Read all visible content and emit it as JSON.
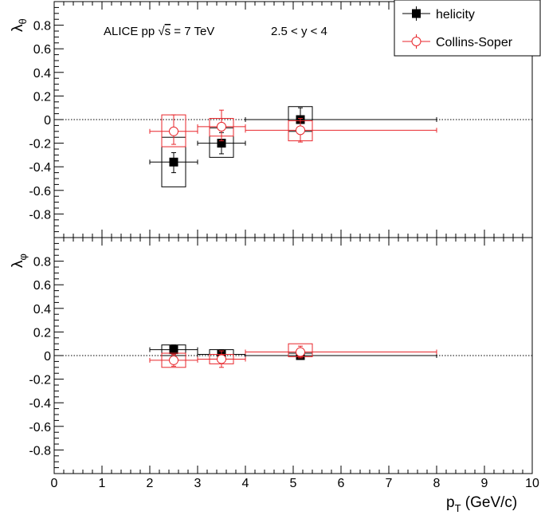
{
  "chart_data": {
    "type": "scatter",
    "annotation": {
      "prefix": "ALICE  pp  ",
      "sqrt": "√",
      "s": "s",
      "energy": " = 7 TeV",
      "rapidity": "2.5 < y < 4"
    },
    "legend": {
      "placement": "top-right",
      "entries": [
        "helicity",
        "Collins-Soper"
      ]
    },
    "x_axis": {
      "label_main": "p",
      "label_sub": "T",
      "label_rest": " (GeV/c)",
      "range": [
        0,
        10
      ],
      "ticks": [
        0,
        1,
        2,
        3,
        4,
        5,
        6,
        7,
        8,
        9,
        10
      ]
    },
    "colors": {
      "helicity": "#000000",
      "collins_soper": "#e8262b",
      "zero_line": "#000000"
    },
    "panels": [
      {
        "id": "theta",
        "ylabel_main": "λ",
        "ylabel_sub": "θ",
        "ylim": [
          -1,
          1
        ],
        "yticks": [
          0.8,
          0.6,
          0.4,
          0.2,
          0,
          -0.2,
          -0.4,
          -0.6,
          -0.8
        ],
        "ytick_labels": [
          "0.8",
          "0.6",
          "0.4",
          "0.2",
          "0",
          "-0.2",
          "-0.4",
          "-0.6",
          "-0.8"
        ],
        "series": [
          {
            "name": "helicity",
            "points": [
              {
                "x": 2.5,
                "y": -0.36,
                "xlo": 2.0,
                "xhi": 3.0,
                "ylo": -0.45,
                "yhi": -0.28,
                "sys_x": [
                  2.25,
                  2.75
                ],
                "sys_y": [
                  -0.57,
                  -0.15
                ]
              },
              {
                "x": 3.5,
                "y": -0.2,
                "xlo": 3.0,
                "xhi": 4.0,
                "ylo": -0.29,
                "yhi": -0.11,
                "sys_x": [
                  3.25,
                  3.75
                ],
                "sys_y": [
                  -0.32,
                  -0.07
                ]
              },
              {
                "x": 5.15,
                "y": 0.0,
                "xlo": 4.0,
                "xhi": 8.0,
                "ylo": -0.09,
                "yhi": 0.1,
                "sys_x": [
                  4.9,
                  5.4
                ],
                "sys_y": [
                  -0.1,
                  0.11
                ]
              }
            ]
          },
          {
            "name": "Collins-Soper",
            "points": [
              {
                "x": 2.5,
                "y": -0.1,
                "xlo": 2.0,
                "xhi": 3.0,
                "ylo": -0.21,
                "yhi": 0.04,
                "sys_x": [
                  2.25,
                  2.75
                ],
                "sys_y": [
                  -0.23,
                  0.04
                ]
              },
              {
                "x": 3.5,
                "y": -0.06,
                "xlo": 3.0,
                "xhi": 4.0,
                "ylo": -0.18,
                "yhi": 0.08,
                "sys_x": [
                  3.25,
                  3.75
                ],
                "sys_y": [
                  -0.14,
                  0.01
                ]
              },
              {
                "x": 5.15,
                "y": -0.09,
                "xlo": 4.0,
                "xhi": 8.0,
                "ylo": -0.19,
                "yhi": 0.01,
                "sys_x": [
                  4.9,
                  5.4
                ],
                "sys_y": [
                  -0.18,
                  -0.01
                ]
              }
            ]
          }
        ]
      },
      {
        "id": "phi",
        "ylabel_main": "λ",
        "ylabel_sub": "φ",
        "ylim": [
          -1,
          1
        ],
        "yticks": [
          0.8,
          0.6,
          0.4,
          0.2,
          0,
          -0.2,
          -0.4,
          -0.6,
          -0.8
        ],
        "ytick_labels": [
          "0.8",
          "0.6",
          "0.4",
          "0.2",
          "0",
          "-0.2",
          "-0.4",
          "-0.6",
          "-0.8"
        ],
        "series": [
          {
            "name": "helicity",
            "points": [
              {
                "x": 2.5,
                "y": 0.05,
                "xlo": 2.0,
                "xhi": 3.0,
                "ylo": 0.01,
                "yhi": 0.09,
                "sys_x": [
                  2.25,
                  2.75
                ],
                "sys_y": [
                  0.0,
                  0.09
                ]
              },
              {
                "x": 3.5,
                "y": 0.01,
                "xlo": 3.0,
                "xhi": 4.0,
                "ylo": -0.03,
                "yhi": 0.05,
                "sys_x": [
                  3.25,
                  3.75
                ],
                "sys_y": [
                  -0.03,
                  0.05
                ]
              },
              {
                "x": 5.15,
                "y": 0.0,
                "xlo": 4.0,
                "xhi": 8.0,
                "ylo": -0.03,
                "yhi": 0.03,
                "sys_x": [
                  4.9,
                  5.4
                ],
                "sys_y": [
                  -0.01,
                  0.02
                ]
              }
            ]
          },
          {
            "name": "Collins-Soper",
            "points": [
              {
                "x": 2.5,
                "y": -0.04,
                "xlo": 2.0,
                "xhi": 3.0,
                "ylo": -0.09,
                "yhi": 0.01,
                "sys_x": [
                  2.25,
                  2.75
                ],
                "sys_y": [
                  -0.1,
                  0.02
                ]
              },
              {
                "x": 3.5,
                "y": -0.03,
                "xlo": 3.0,
                "xhi": 4.0,
                "ylo": -0.1,
                "yhi": 0.04,
                "sys_x": [
                  3.25,
                  3.75
                ],
                "sys_y": [
                  -0.07,
                  0.01
                ]
              },
              {
                "x": 5.15,
                "y": 0.03,
                "xlo": 4.0,
                "xhi": 8.0,
                "ylo": -0.02,
                "yhi": 0.08,
                "sys_x": [
                  4.9,
                  5.4
                ],
                "sys_y": [
                  -0.01,
                  0.1
                ]
              }
            ]
          }
        ]
      }
    ]
  }
}
